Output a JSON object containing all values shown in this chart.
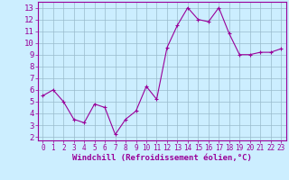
{
  "x": [
    0,
    1,
    2,
    3,
    4,
    5,
    6,
    7,
    8,
    9,
    10,
    11,
    12,
    13,
    14,
    15,
    16,
    17,
    18,
    19,
    20,
    21,
    22,
    23
  ],
  "y": [
    5.5,
    6.0,
    5.0,
    3.5,
    3.2,
    4.8,
    4.5,
    2.2,
    3.5,
    4.2,
    6.3,
    5.2,
    9.6,
    11.5,
    13.0,
    12.0,
    11.8,
    13.0,
    10.8,
    9.0,
    9.0,
    9.2,
    9.2,
    9.5
  ],
  "line_color": "#990099",
  "marker": "+",
  "marker_size": 3,
  "marker_linewidth": 0.8,
  "linewidth": 0.8,
  "background_color": "#cceeff",
  "grid_color": "#99bbcc",
  "xlabel": "Windchill (Refroidissement éolien,°C)",
  "xlabel_color": "#990099",
  "ylabel_ticks": [
    2,
    3,
    4,
    5,
    6,
    7,
    8,
    9,
    10,
    11,
    12,
    13
  ],
  "xlabel_ticks": [
    0,
    1,
    2,
    3,
    4,
    5,
    6,
    7,
    8,
    9,
    10,
    11,
    12,
    13,
    14,
    15,
    16,
    17,
    18,
    19,
    20,
    21,
    22,
    23
  ],
  "ylim": [
    1.7,
    13.5
  ],
  "xlim": [
    -0.5,
    23.5
  ],
  "spine_color": "#990099",
  "tick_color": "#990099",
  "tick_label_color": "#990099",
  "xlabel_fontsize": 6.5,
  "tick_fontsize_x": 5.5,
  "tick_fontsize_y": 6.5
}
